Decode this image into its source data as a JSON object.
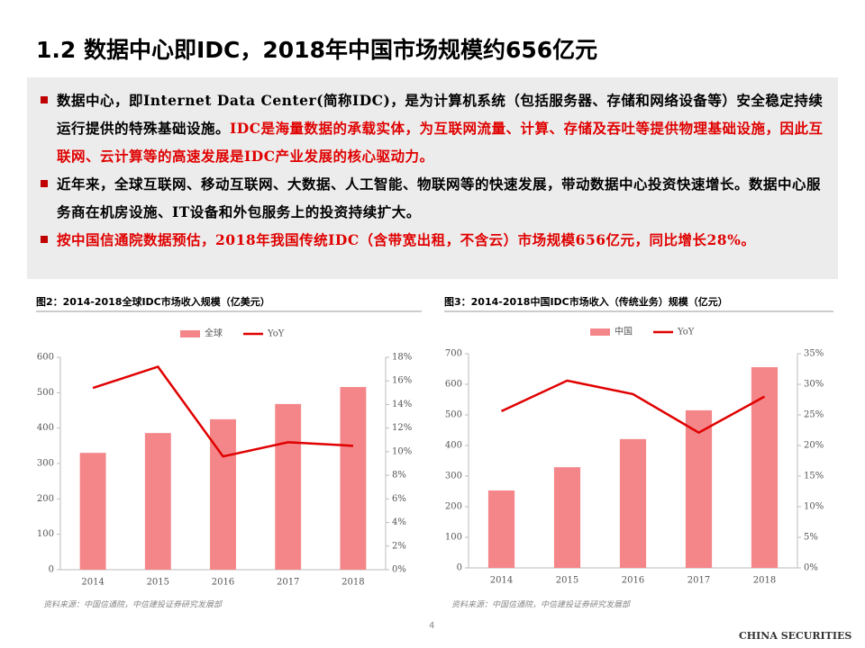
{
  "slide": {
    "title": "1.2 数据中心即IDC，2018年中国市场规模约656亿元",
    "bullets": [
      {
        "segments": [
          {
            "text": "数据中心，即Internet Data Center(简称IDC)，是为计算机系统（包括服务器、存储和网络设备等）安全稳定持续运行提供的特殊基础设施。",
            "color": "#000000"
          },
          {
            "text": "IDC是海量数据的承载实体，为互联网流量、计算、存储及吞吐等提供物理基础设施，因此互联网、云计算等的高速发展是IDC产业发展的核心驱动力。",
            "color": "#e00000"
          }
        ]
      },
      {
        "segments": [
          {
            "text": "近年来，全球互联网、移动互联网、大数据、人工智能、物联网等的快速发展，带动数据中心投资快速增长。数据中心服务商在机房设施、IT设备和外包服务上的投资持续扩大。",
            "color": "#000000"
          }
        ]
      },
      {
        "segments": [
          {
            "text": "按中国信通院数据预估，2018年我国传统IDC（含带宽出租，不含云）市场规模656亿元，同比增长28%。",
            "color": "#e00000"
          }
        ]
      }
    ],
    "page_number": "4",
    "brand": "CHINA SECURITIES"
  },
  "chart_data": [
    {
      "type": "combo",
      "title": "图2：2014-2018全球IDC市场收入规模（亿美元）",
      "categories": [
        "2014",
        "2015",
        "2016",
        "2017",
        "2018"
      ],
      "series": [
        {
          "name": "全球",
          "type": "bar",
          "color": "#f4868a",
          "values": [
            330,
            386,
            425,
            468,
            516
          ]
        },
        {
          "name": "YoY",
          "type": "line",
          "axis": "y2",
          "color": "#e00000",
          "values": [
            15.4,
            17.2,
            9.6,
            10.8,
            10.5
          ]
        }
      ],
      "ylim": [
        0,
        600
      ],
      "yticks": [
        0,
        100,
        200,
        300,
        400,
        500,
        600
      ],
      "y2lim": [
        0,
        18
      ],
      "y2ticks": [
        {
          "value": 0,
          "label": "0%"
        },
        {
          "value": 2,
          "label": "2%"
        },
        {
          "value": 4,
          "label": "4%"
        },
        {
          "value": 6,
          "label": "6%"
        },
        {
          "value": 8,
          "label": "8%"
        },
        {
          "value": 10,
          "label": "10%"
        },
        {
          "value": 12,
          "label": "12%"
        },
        {
          "value": 14,
          "label": "14%"
        },
        {
          "value": 16,
          "label": "16%"
        },
        {
          "value": 18,
          "label": "18%"
        }
      ],
      "source": "资料来源：中国信通院，中信建投证券研究发展部"
    },
    {
      "type": "combo",
      "title": "图3：2014-2018中国IDC市场收入（传统业务）规模（亿元）",
      "categories": [
        "2014",
        "2015",
        "2016",
        "2017",
        "2018"
      ],
      "series": [
        {
          "name": "中国",
          "type": "bar",
          "color": "#f4868a",
          "values": [
            253,
            329,
            421,
            515,
            656
          ]
        },
        {
          "name": "YoY",
          "type": "line",
          "axis": "y2",
          "color": "#e00000",
          "values": [
            25.6,
            30.6,
            28.4,
            22.1,
            28
          ]
        }
      ],
      "ylim": [
        0,
        700
      ],
      "yticks": [
        0,
        100,
        200,
        300,
        400,
        500,
        600,
        700
      ],
      "y2lim": [
        0,
        35
      ],
      "y2ticks": [
        {
          "value": 0,
          "label": "0%"
        },
        {
          "value": 5,
          "label": "5%"
        },
        {
          "value": 10,
          "label": "10%"
        },
        {
          "value": 15,
          "label": "15%"
        },
        {
          "value": 20,
          "label": "20%"
        },
        {
          "value": 25,
          "label": "25%"
        },
        {
          "value": 30,
          "label": "30%"
        },
        {
          "value": 35,
          "label": "35%"
        }
      ],
      "source": "资料来源：中国信通院，中信建投证券研究发展部"
    }
  ]
}
